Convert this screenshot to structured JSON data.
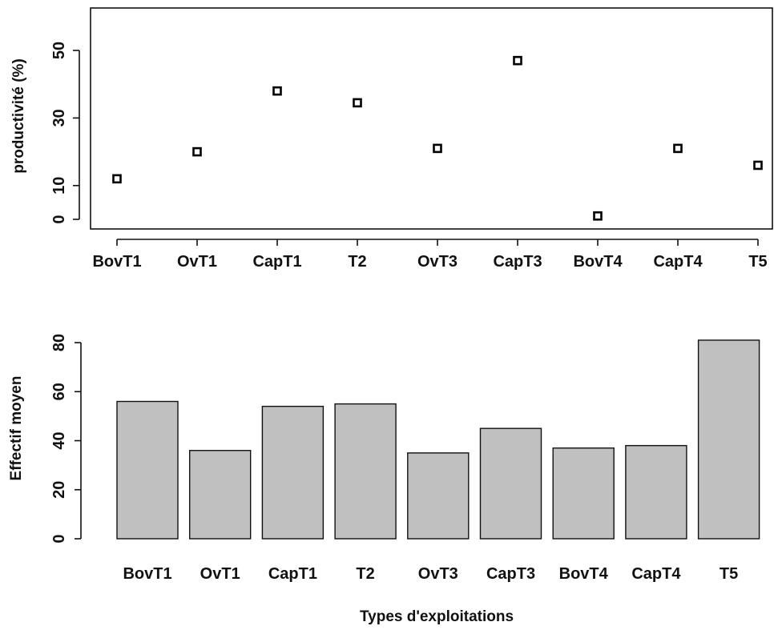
{
  "chart_data": [
    {
      "type": "scatter",
      "categories": [
        "BovT1",
        "OvT1",
        "CapT1",
        "T2",
        "OvT3",
        "CapT3",
        "BovT4",
        "CapT4",
        "T5"
      ],
      "values": [
        12,
        20,
        38,
        34.5,
        21,
        47,
        1,
        21,
        16
      ],
      "title": "",
      "xlabel": "",
      "ylabel": "productivité (%)",
      "ylim": [
        -3,
        62
      ],
      "yticks": [
        0,
        10,
        30,
        50
      ],
      "point_marker": "open-square",
      "frame": "box",
      "grid": false
    },
    {
      "type": "bar",
      "categories": [
        "BovT1",
        "OvT1",
        "CapT1",
        "T2",
        "OvT3",
        "CapT3",
        "BovT4",
        "CapT4",
        "T5"
      ],
      "values": [
        56,
        36,
        54,
        55,
        35,
        45,
        37,
        38,
        81
      ],
      "title": "",
      "xlabel": "Types d'exploitations",
      "ylabel": "Effectif moyen",
      "ylim": [
        0,
        80
      ],
      "yticks": [
        0,
        20,
        40,
        60,
        80
      ],
      "bar_color": "#c0c0c0",
      "grid": false
    }
  ]
}
